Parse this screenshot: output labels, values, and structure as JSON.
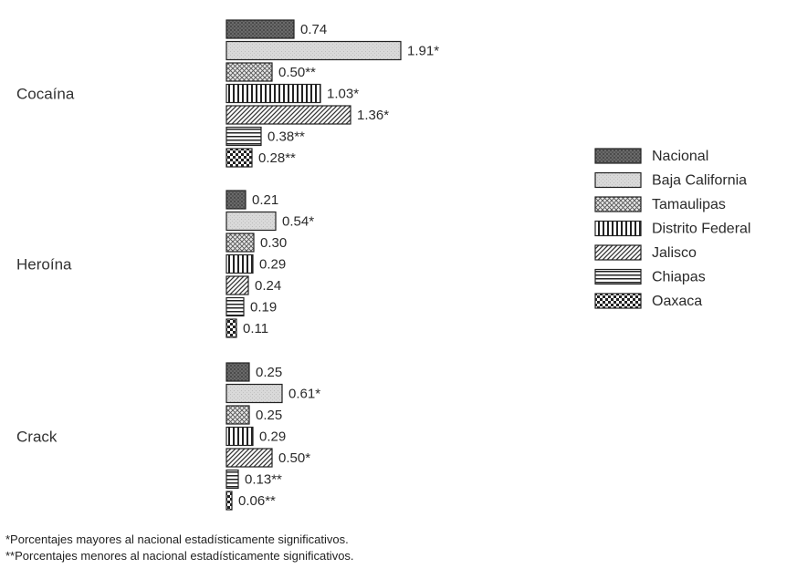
{
  "chart_data": {
    "type": "bar",
    "orientation": "horizontal",
    "categories": [
      "Cocaína",
      "Heroína",
      "Crack"
    ],
    "series": [
      {
        "name": "Nacional",
        "values": [
          0.74,
          0.21,
          0.25
        ],
        "labels": [
          "0.74",
          "0.21",
          "0.25"
        ],
        "pattern": "dark"
      },
      {
        "name": "Baja California",
        "values": [
          1.91,
          0.54,
          0.61
        ],
        "labels": [
          "1.91*",
          "0.54*",
          "0.61*"
        ],
        "pattern": "light"
      },
      {
        "name": "Tamaulipas",
        "values": [
          0.5,
          0.3,
          0.25
        ],
        "labels": [
          "0.50**",
          "0.30",
          "0.25"
        ],
        "pattern": "crosshatch"
      },
      {
        "name": "Distrito Federal",
        "values": [
          1.03,
          0.29,
          0.29
        ],
        "labels": [
          "1.03*",
          "0.29",
          "0.29"
        ],
        "pattern": "vertical"
      },
      {
        "name": "Jalisco",
        "values": [
          1.36,
          0.24,
          0.5
        ],
        "labels": [
          "1.36*",
          "0.24",
          "0.50*"
        ],
        "pattern": "diagonal"
      },
      {
        "name": "Chiapas",
        "values": [
          0.38,
          0.19,
          0.13
        ],
        "labels": [
          "0.38**",
          "0.19",
          "0.13**"
        ],
        "pattern": "horizontal"
      },
      {
        "name": "Oaxaca",
        "values": [
          0.28,
          0.11,
          0.06
        ],
        "labels": [
          "0.28**",
          "0.11",
          "0.06**"
        ],
        "pattern": "checker"
      }
    ],
    "legend_position": "right",
    "grid": false,
    "footnotes": [
      "*Porcentajes mayores al nacional estadísticamente significativos.",
      "**Porcentajes menores al nacional estadísticamente significativos."
    ]
  }
}
